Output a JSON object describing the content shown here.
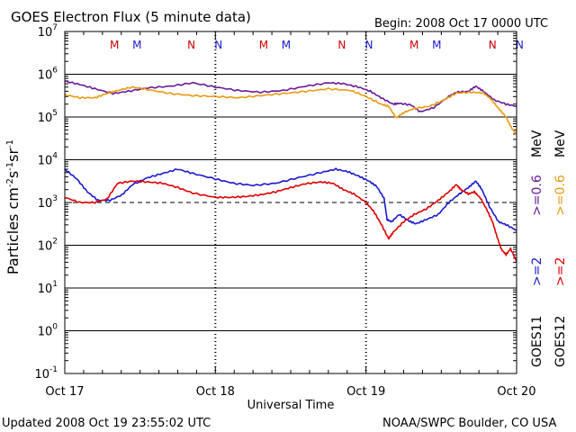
{
  "chart_data": {
    "type": "line",
    "title": "GOES Electron Flux (5 minute data)",
    "begin_label": "Begin: 2008 Oct 17 0000 UTC",
    "xlabel": "Universal Time",
    "ylabel": {
      "base": "Particles cm",
      "sup1": "-2",
      "mid1": "s",
      "sup2": "-1",
      "mid2": "sr",
      "sup3": "-1"
    },
    "updated": "Updated 2008 Oct 19 23:55:02 UTC",
    "credit": "NOAA/SWPC Boulder, CO USA",
    "x_range_days": [
      0,
      3
    ],
    "x_ticks": [
      {
        "day": 0,
        "label": "Oct 17"
      },
      {
        "day": 1,
        "label": "Oct 18"
      },
      {
        "day": 2,
        "label": "Oct 19"
      },
      {
        "day": 3,
        "label": "Oct 20"
      }
    ],
    "y_range_log10": [
      -1,
      7
    ],
    "y_ticks": [
      {
        "exp": 7,
        "label": "7"
      },
      {
        "exp": 6,
        "label": "6"
      },
      {
        "exp": 5,
        "label": "5"
      },
      {
        "exp": 4,
        "label": "4"
      },
      {
        "exp": 3,
        "label": "3"
      },
      {
        "exp": 2,
        "label": "2"
      },
      {
        "exp": 1,
        "label": "1"
      },
      {
        "exp": 0,
        "label": "0"
      },
      {
        "exp": -1,
        "label": "-1"
      }
    ],
    "y_tick_base": "10",
    "gridlines_log10": [
      6,
      5,
      4,
      2,
      1,
      0
    ],
    "threshold_log10": 3,
    "mn_markers": [
      {
        "day": 0.33,
        "label": "M",
        "color": "#cc0000"
      },
      {
        "day": 0.48,
        "label": "M",
        "color": "#1a1acc"
      },
      {
        "day": 0.84,
        "label": "N",
        "color": "#cc0000"
      },
      {
        "day": 1.02,
        "label": "N",
        "color": "#1a1acc"
      },
      {
        "day": 1.32,
        "label": "M",
        "color": "#cc0000"
      },
      {
        "day": 1.47,
        "label": "M",
        "color": "#1a1acc"
      },
      {
        "day": 1.84,
        "label": "N",
        "color": "#cc0000"
      },
      {
        "day": 2.02,
        "label": "N",
        "color": "#1a1acc"
      },
      {
        "day": 2.32,
        "label": "M",
        "color": "#cc0000"
      },
      {
        "day": 2.47,
        "label": "M",
        "color": "#1a1acc"
      },
      {
        "day": 2.84,
        "label": "N",
        "color": "#cc0000"
      },
      {
        "day": 3.02,
        "label": "N",
        "color": "#1a1acc"
      }
    ],
    "legend": [
      {
        "text": ">=2",
        "color": "#1a1acc",
        "column": 0,
        "row": 0
      },
      {
        "text": ">=0.6",
        "color": "#6a1a9a",
        "column": 0,
        "row": 1
      },
      {
        "text": "MeV",
        "color": "#000000",
        "column": 0,
        "row": 2
      },
      {
        "text": ">=2",
        "color": "#dd0000",
        "column": 1,
        "row": 0
      },
      {
        "text": ">=0.6",
        "color": "#e89a10",
        "column": 1,
        "row": 1
      },
      {
        "text": "MeV",
        "color": "#000000",
        "column": 1,
        "row": 2
      },
      {
        "text": "GOES11",
        "color": "#000000",
        "column": 0,
        "row": 3
      },
      {
        "text": "GOES12",
        "color": "#000000",
        "column": 1,
        "row": 3
      }
    ],
    "series": [
      {
        "name": "GOES11 >=0.6 MeV",
        "color": "#6a1a9a",
        "points": [
          [
            0.0,
            5.84
          ],
          [
            0.1,
            5.76
          ],
          [
            0.2,
            5.66
          ],
          [
            0.32,
            5.55
          ],
          [
            0.42,
            5.6
          ],
          [
            0.55,
            5.68
          ],
          [
            0.7,
            5.72
          ],
          [
            0.85,
            5.8
          ],
          [
            1.0,
            5.7
          ],
          [
            1.15,
            5.62
          ],
          [
            1.3,
            5.58
          ],
          [
            1.45,
            5.62
          ],
          [
            1.6,
            5.72
          ],
          [
            1.75,
            5.8
          ],
          [
            1.85,
            5.78
          ],
          [
            1.95,
            5.7
          ],
          [
            2.03,
            5.6
          ],
          [
            2.1,
            5.45
          ],
          [
            2.18,
            5.3
          ],
          [
            2.22,
            5.32
          ],
          [
            2.3,
            5.28
          ],
          [
            2.36,
            5.12
          ],
          [
            2.45,
            5.22
          ],
          [
            2.55,
            5.48
          ],
          [
            2.6,
            5.58
          ],
          [
            2.68,
            5.6
          ],
          [
            2.73,
            5.72
          ],
          [
            2.78,
            5.6
          ],
          [
            2.85,
            5.4
          ],
          [
            2.93,
            5.3
          ],
          [
            3.0,
            5.25
          ]
        ]
      },
      {
        "name": "GOES12 >=0.6 MeV",
        "color": "#e89a10",
        "points": [
          [
            0.0,
            5.52
          ],
          [
            0.1,
            5.45
          ],
          [
            0.2,
            5.45
          ],
          [
            0.28,
            5.55
          ],
          [
            0.35,
            5.62
          ],
          [
            0.45,
            5.7
          ],
          [
            0.55,
            5.64
          ],
          [
            0.7,
            5.55
          ],
          [
            0.85,
            5.5
          ],
          [
            1.0,
            5.48
          ],
          [
            1.15,
            5.45
          ],
          [
            1.3,
            5.5
          ],
          [
            1.45,
            5.55
          ],
          [
            1.6,
            5.6
          ],
          [
            1.75,
            5.66
          ],
          [
            1.9,
            5.62
          ],
          [
            2.0,
            5.48
          ],
          [
            2.1,
            5.3
          ],
          [
            2.15,
            5.25
          ],
          [
            2.2,
            4.98
          ],
          [
            2.25,
            5.1
          ],
          [
            2.32,
            5.2
          ],
          [
            2.42,
            5.25
          ],
          [
            2.52,
            5.4
          ],
          [
            2.6,
            5.56
          ],
          [
            2.7,
            5.58
          ],
          [
            2.78,
            5.56
          ],
          [
            2.83,
            5.42
          ],
          [
            2.88,
            5.2
          ],
          [
            2.93,
            5.0
          ],
          [
            2.97,
            4.72
          ],
          [
            3.0,
            4.6
          ]
        ]
      },
      {
        "name": "GOES11 >=2 MeV",
        "color": "#1a1acc",
        "points": [
          [
            0.0,
            3.78
          ],
          [
            0.08,
            3.55
          ],
          [
            0.15,
            3.25
          ],
          [
            0.22,
            3.05
          ],
          [
            0.3,
            3.05
          ],
          [
            0.38,
            3.18
          ],
          [
            0.45,
            3.42
          ],
          [
            0.55,
            3.58
          ],
          [
            0.65,
            3.68
          ],
          [
            0.75,
            3.78
          ],
          [
            0.85,
            3.68
          ],
          [
            1.0,
            3.55
          ],
          [
            1.12,
            3.45
          ],
          [
            1.25,
            3.4
          ],
          [
            1.4,
            3.45
          ],
          [
            1.55,
            3.58
          ],
          [
            1.7,
            3.7
          ],
          [
            1.8,
            3.78
          ],
          [
            1.88,
            3.72
          ],
          [
            1.95,
            3.62
          ],
          [
            2.02,
            3.5
          ],
          [
            2.07,
            3.38
          ],
          [
            2.12,
            3.1
          ],
          [
            2.14,
            2.6
          ],
          [
            2.17,
            2.55
          ],
          [
            2.22,
            2.72
          ],
          [
            2.28,
            2.58
          ],
          [
            2.33,
            2.5
          ],
          [
            2.4,
            2.6
          ],
          [
            2.48,
            2.72
          ],
          [
            2.55,
            3.0
          ],
          [
            2.62,
            3.2
          ],
          [
            2.68,
            3.35
          ],
          [
            2.73,
            3.5
          ],
          [
            2.77,
            3.3
          ],
          [
            2.82,
            2.9
          ],
          [
            2.88,
            2.55
          ],
          [
            2.93,
            2.48
          ],
          [
            3.0,
            2.35
          ]
        ]
      },
      {
        "name": "GOES12 >=2 MeV",
        "color": "#dd0000",
        "points": [
          [
            0.0,
            3.12
          ],
          [
            0.1,
            3.0
          ],
          [
            0.2,
            3.0
          ],
          [
            0.28,
            3.08
          ],
          [
            0.35,
            3.45
          ],
          [
            0.45,
            3.5
          ],
          [
            0.55,
            3.48
          ],
          [
            0.65,
            3.45
          ],
          [
            0.75,
            3.35
          ],
          [
            0.85,
            3.22
          ],
          [
            1.0,
            3.12
          ],
          [
            1.1,
            3.12
          ],
          [
            1.2,
            3.14
          ],
          [
            1.3,
            3.18
          ],
          [
            1.4,
            3.25
          ],
          [
            1.5,
            3.35
          ],
          [
            1.6,
            3.44
          ],
          [
            1.7,
            3.48
          ],
          [
            1.78,
            3.45
          ],
          [
            1.85,
            3.3
          ],
          [
            1.92,
            3.2
          ],
          [
            2.0,
            3.0
          ],
          [
            2.05,
            2.8
          ],
          [
            2.1,
            2.5
          ],
          [
            2.15,
            2.15
          ],
          [
            2.18,
            2.3
          ],
          [
            2.25,
            2.55
          ],
          [
            2.32,
            2.72
          ],
          [
            2.4,
            2.85
          ],
          [
            2.48,
            3.05
          ],
          [
            2.55,
            3.25
          ],
          [
            2.6,
            3.42
          ],
          [
            2.63,
            3.3
          ],
          [
            2.68,
            3.2
          ],
          [
            2.72,
            3.25
          ],
          [
            2.76,
            3.1
          ],
          [
            2.8,
            2.85
          ],
          [
            2.84,
            2.55
          ],
          [
            2.87,
            2.2
          ],
          [
            2.9,
            1.9
          ],
          [
            2.93,
            1.78
          ],
          [
            2.96,
            1.92
          ],
          [
            3.0,
            1.62
          ]
        ]
      }
    ]
  }
}
